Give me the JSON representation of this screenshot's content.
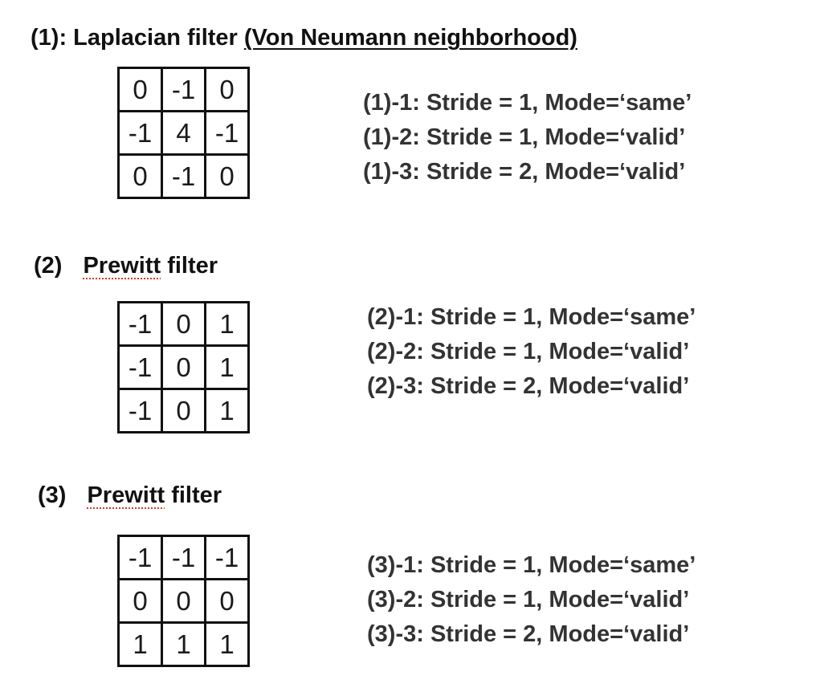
{
  "sections": [
    {
      "title_prefix": "(1): Laplacian filter ",
      "title_underlined": "(Von Neumann neighborhood)",
      "kernel": [
        [
          "0",
          "-1",
          "0"
        ],
        [
          "-1",
          "4",
          "-1"
        ],
        [
          "0",
          "-1",
          "0"
        ]
      ],
      "modes": [
        "(1)-1: Stride = 1, Mode=‘same’",
        "(1)-2: Stride = 1, Mode=‘valid’",
        "(1)-3: Stride = 2, Mode=‘valid’"
      ]
    },
    {
      "title_prefix": "(2)",
      "title_name": "Prewitt",
      "title_suffix": " filter",
      "kernel": [
        [
          "-1",
          "0",
          "1"
        ],
        [
          "-1",
          "0",
          "1"
        ],
        [
          "-1",
          "0",
          "1"
        ]
      ],
      "modes": [
        "(2)-1: Stride = 1, Mode=‘same’",
        "(2)-2: Stride = 1, Mode=‘valid’",
        "(2)-3: Stride = 2, Mode=‘valid’"
      ]
    },
    {
      "title_prefix": "(3)",
      "title_name": "Prewitt",
      "title_suffix": " filter",
      "kernel": [
        [
          "-1",
          "-1",
          "-1"
        ],
        [
          "0",
          "0",
          "0"
        ],
        [
          "1",
          "1",
          "1"
        ]
      ],
      "modes": [
        "(3)-1: Stride = 1, Mode=‘same’",
        "(3)-2: Stride = 1, Mode=‘valid’",
        "(3)-3: Stride = 2, Mode=‘valid’"
      ]
    }
  ]
}
